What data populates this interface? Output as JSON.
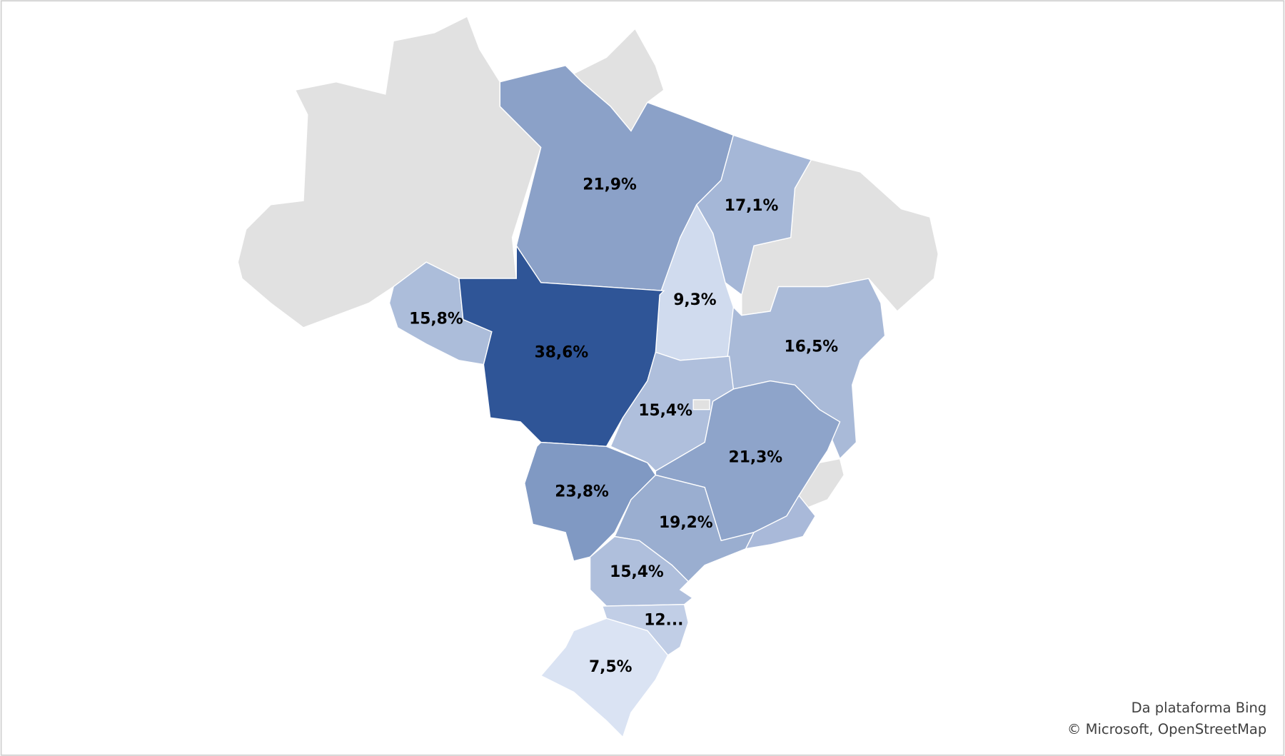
{
  "chart_data": {
    "type": "choropleth",
    "values": [
      21.9,
      17.1,
      9.3,
      16.5,
      15.8,
      38.6,
      15.4,
      21.3,
      23.8,
      19.2,
      15.4,
      12,
      7.5
    ],
    "value_labels": [
      "21,9%",
      "17,1%",
      "9,3%",
      "16,5%",
      "15,8%",
      "38,6%",
      "15,4%",
      "21,3%",
      "23,8%",
      "19,2%",
      "15,4%",
      "12...",
      "7,5%"
    ],
    "colorscale": [
      "#dae3f3",
      "#2f5597"
    ],
    "attribution": [
      "Da plataforma Bing",
      "© Microsoft, OpenStreetMap"
    ]
  }
}
